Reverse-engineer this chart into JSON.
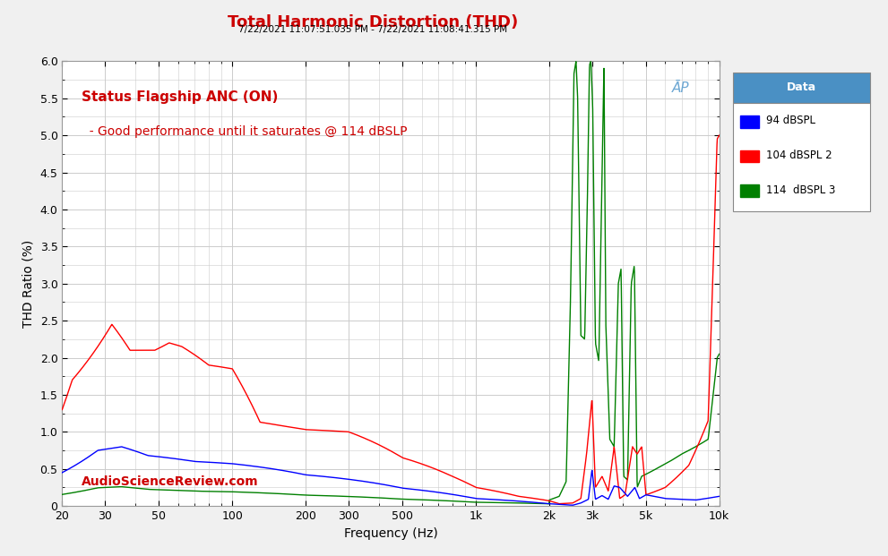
{
  "title": "Total Harmonic Distortion (THD)",
  "subtitle": "7/22/2021 11:07:51.035 PM - 7/22/2021 11:08:41.315 PM",
  "xlabel": "Frequency (Hz)",
  "ylabel": "THD Ratio (%)",
  "annotation_line1": "Status Flagship ANC (ON)",
  "annotation_line2": "  - Good performance until it saturates @ 114 dBSLP",
  "watermark": "AudioScienceReview.com",
  "legend_title": "Data",
  "legend_entries": [
    "94 dBSPL",
    "104 dBSPL 2",
    "114  dBSPL 3"
  ],
  "line_colors": [
    "#0000FF",
    "#FF0000",
    "#008000"
  ],
  "ylim": [
    0,
    6.0
  ],
  "xlim_log": [
    20,
    10000
  ],
  "background_color": "#F0F0F0",
  "plot_bg_color": "#FFFFFF",
  "title_color": "#CC0000",
  "annotation_color": "#CC0000",
  "watermark_color": "#CC0000",
  "subtitle_color": "#000000",
  "grid_color": "#CCCCCC",
  "legend_header_color": "#4A90C4"
}
